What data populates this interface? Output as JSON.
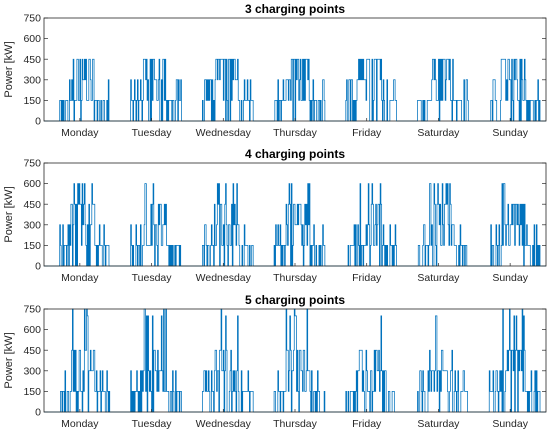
{
  "chart_data": [
    {
      "type": "line",
      "title": "3 charging points",
      "ylabel": "Power [kW]",
      "xlabel": "",
      "ylim": [
        0,
        750
      ],
      "yticks": [
        0,
        150,
        300,
        450,
        600,
        750
      ],
      "x_units": "hours of week (0-168)",
      "x_categories": [
        "Monday",
        "Tuesday",
        "Wednesday",
        "Thursday",
        "Friday",
        "Saturday",
        "Sunday"
      ],
      "grid": false,
      "color": "#0072BD",
      "levels_kW": [
        0,
        150,
        300,
        450
      ],
      "daily_pattern": {
        "active_hours": [
          5,
          22
        ],
        "peak_hours": [
          9,
          17
        ],
        "typical_max": 450
      },
      "series": [
        {
          "values": [
            [
              0,
              150
            ],
            [
              3,
              0
            ],
            [
              6,
              150
            ],
            [
              9,
              450
            ],
            [
              12,
              300
            ],
            [
              15,
              450
            ],
            [
              18,
              150
            ],
            [
              21,
              150
            ],
            [
              24,
              0
            ],
            [
              27,
              0
            ],
            [
              30,
              150
            ],
            [
              33,
              450
            ],
            [
              36,
              300
            ],
            [
              39,
              450
            ],
            [
              42,
              150
            ],
            [
              45,
              150
            ],
            [
              48,
              0
            ],
            [
              51,
              0
            ],
            [
              54,
              150
            ],
            [
              57,
              450
            ],
            [
              60,
              300
            ],
            [
              63,
              450
            ],
            [
              66,
              150
            ],
            [
              69,
              150
            ],
            [
              72,
              0
            ],
            [
              75,
              0
            ],
            [
              78,
              150
            ],
            [
              81,
              450
            ],
            [
              84,
              450
            ],
            [
              87,
              450
            ],
            [
              90,
              300
            ],
            [
              93,
              150
            ],
            [
              96,
              0
            ],
            [
              99,
              0
            ],
            [
              102,
              150
            ],
            [
              105,
              450
            ],
            [
              108,
              300
            ],
            [
              111,
              450
            ],
            [
              114,
              150
            ],
            [
              117,
              150
            ],
            [
              120,
              0
            ],
            [
              123,
              0
            ],
            [
              126,
              150
            ],
            [
              129,
              450
            ],
            [
              132,
              300
            ],
            [
              135,
              450
            ],
            [
              138,
              150
            ],
            [
              141,
              150
            ],
            [
              144,
              0
            ],
            [
              147,
              0
            ],
            [
              150,
              150
            ],
            [
              153,
              450
            ],
            [
              156,
              300
            ],
            [
              159,
              450
            ],
            [
              162,
              150
            ],
            [
              165,
              150
            ]
          ]
        }
      ]
    },
    {
      "type": "line",
      "title": "4 charging points",
      "ylabel": "Power [kW]",
      "xlabel": "",
      "ylim": [
        0,
        750
      ],
      "yticks": [
        0,
        150,
        300,
        450,
        600,
        750
      ],
      "x_units": "hours of week (0-168)",
      "x_categories": [
        "Monday",
        "Tuesday",
        "Wednesday",
        "Thursday",
        "Friday",
        "Saturday",
        "Sunday"
      ],
      "grid": false,
      "color": "#0072BD",
      "levels_kW": [
        0,
        150,
        300,
        450,
        600
      ],
      "daily_pattern": {
        "active_hours": [
          5,
          22
        ],
        "peak_hours": [
          9,
          17
        ],
        "typical_max": 600
      },
      "series": [
        {
          "values": [
            [
              0,
              450
            ],
            [
              3,
              0
            ],
            [
              6,
              150
            ],
            [
              9,
              450
            ],
            [
              12,
              600
            ],
            [
              15,
              450
            ],
            [
              18,
              150
            ],
            [
              21,
              150
            ],
            [
              24,
              0
            ],
            [
              27,
              0
            ],
            [
              30,
              150
            ],
            [
              33,
              600
            ],
            [
              36,
              450
            ],
            [
              39,
              600
            ],
            [
              42,
              150
            ],
            [
              45,
              150
            ],
            [
              48,
              0
            ],
            [
              51,
              0
            ],
            [
              54,
              150
            ],
            [
              57,
              600
            ],
            [
              60,
              450
            ],
            [
              63,
              600
            ],
            [
              66,
              150
            ],
            [
              69,
              150
            ],
            [
              72,
              0
            ],
            [
              75,
              0
            ],
            [
              78,
              150
            ],
            [
              81,
              600
            ],
            [
              84,
              600
            ],
            [
              87,
              600
            ],
            [
              90,
              450
            ],
            [
              93,
              150
            ],
            [
              96,
              0
            ],
            [
              99,
              0
            ],
            [
              102,
              150
            ],
            [
              105,
              600
            ],
            [
              108,
              450
            ],
            [
              111,
              600
            ],
            [
              114,
              150
            ],
            [
              117,
              150
            ],
            [
              120,
              0
            ],
            [
              123,
              0
            ],
            [
              126,
              150
            ],
            [
              129,
              600
            ],
            [
              132,
              450
            ],
            [
              135,
              600
            ],
            [
              138,
              150
            ],
            [
              141,
              150
            ],
            [
              144,
              0
            ],
            [
              147,
              0
            ],
            [
              150,
              150
            ],
            [
              153,
              600
            ],
            [
              156,
              450
            ],
            [
              159,
              600
            ],
            [
              162,
              150
            ],
            [
              165,
              150
            ]
          ]
        }
      ]
    },
    {
      "type": "line",
      "title": "5 charging points",
      "ylabel": "Power [kW]",
      "xlabel": "",
      "ylim": [
        0,
        750
      ],
      "yticks": [
        0,
        150,
        300,
        450,
        600,
        750
      ],
      "x_units": "hours of week (0-168)",
      "x_categories": [
        "Monday",
        "Tuesday",
        "Wednesday",
        "Thursday",
        "Friday",
        "Saturday",
        "Sunday"
      ],
      "grid": false,
      "color": "#0072BD",
      "levels_kW": [
        0,
        150,
        300,
        450,
        600,
        750
      ],
      "daily_pattern": {
        "active_hours": [
          5,
          22
        ],
        "peak_hours": [
          9,
          17
        ],
        "typical_max": 700
      },
      "series": [
        {
          "values": [
            [
              0,
              450
            ],
            [
              3,
              0
            ],
            [
              6,
              150
            ],
            [
              9,
              600
            ],
            [
              12,
              700
            ],
            [
              15,
              450
            ],
            [
              18,
              150
            ],
            [
              21,
              150
            ],
            [
              24,
              0
            ],
            [
              27,
              0
            ],
            [
              30,
              150
            ],
            [
              33,
              600
            ],
            [
              36,
              700
            ],
            [
              39,
              600
            ],
            [
              42,
              150
            ],
            [
              45,
              150
            ],
            [
              48,
              0
            ],
            [
              51,
              0
            ],
            [
              54,
              150
            ],
            [
              57,
              750
            ],
            [
              60,
              600
            ],
            [
              63,
              600
            ],
            [
              66,
              150
            ],
            [
              69,
              150
            ],
            [
              72,
              0
            ],
            [
              75,
              0
            ],
            [
              78,
              150
            ],
            [
              81,
              750
            ],
            [
              84,
              750
            ],
            [
              87,
              750
            ],
            [
              90,
              600
            ],
            [
              93,
              150
            ],
            [
              96,
              0
            ],
            [
              99,
              0
            ],
            [
              102,
              150
            ],
            [
              105,
              600
            ],
            [
              108,
              450
            ],
            [
              111,
              600
            ],
            [
              114,
              150
            ],
            [
              117,
              150
            ],
            [
              120,
              0
            ],
            [
              123,
              0
            ],
            [
              126,
              150
            ],
            [
              129,
              700
            ],
            [
              132,
              600
            ],
            [
              135,
              600
            ],
            [
              138,
              150
            ],
            [
              141,
              150
            ],
            [
              144,
              0
            ],
            [
              147,
              0
            ],
            [
              150,
              150
            ],
            [
              153,
              750
            ],
            [
              156,
              600
            ],
            [
              159,
              600
            ],
            [
              162,
              150
            ],
            [
              165,
              150
            ]
          ]
        }
      ]
    }
  ]
}
